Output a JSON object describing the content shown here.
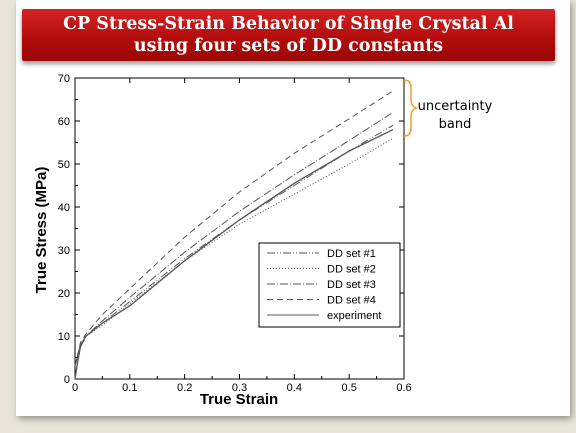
{
  "slide": {
    "title": "CP Stress-Strain Behavior of Single Crystal Al using four sets of DD constants"
  },
  "chart_data": {
    "type": "line",
    "xlabel": "True Strain",
    "ylabel": "True Stress (MPa)",
    "xlim": [
      0,
      0.6
    ],
    "ylim": [
      0,
      70
    ],
    "xticks": [
      "0",
      "0.1",
      "0.2",
      "0.3",
      "0.4",
      "0.5",
      "0.6"
    ],
    "yticks": [
      "0",
      "10",
      "20",
      "30",
      "40",
      "50",
      "60",
      "70"
    ],
    "grid": false,
    "legend_position": "center-right",
    "annotation": "uncertainty band",
    "colors": {
      "axis": "#000000",
      "series": "#555555",
      "brace": "#f0a030"
    },
    "series": [
      {
        "name": "DD set #1",
        "dash": "8,2,1,2,1,2",
        "x": [
          0,
          0.01,
          0.02,
          0.05,
          0.1,
          0.2,
          0.3,
          0.4,
          0.5,
          0.58
        ],
        "y": [
          3,
          8,
          10,
          13,
          18,
          28,
          37,
          45,
          53,
          59
        ]
      },
      {
        "name": "DD set #2",
        "dash": "1,2",
        "x": [
          0,
          0.01,
          0.02,
          0.05,
          0.1,
          0.2,
          0.3,
          0.4,
          0.5,
          0.58
        ],
        "y": [
          3,
          8,
          10,
          12.5,
          17.5,
          27.5,
          36,
          43,
          50,
          56
        ]
      },
      {
        "name": "DD set #3",
        "dash": "8,2,1,2",
        "x": [
          0,
          0.01,
          0.02,
          0.05,
          0.1,
          0.2,
          0.3,
          0.4,
          0.5,
          0.58
        ],
        "y": [
          3,
          8,
          10,
          13.5,
          19,
          29.5,
          39,
          47.5,
          55.5,
          62
        ]
      },
      {
        "name": "DD set #4",
        "dash": "6,4",
        "x": [
          0,
          0.01,
          0.02,
          0.05,
          0.1,
          0.2,
          0.3,
          0.4,
          0.5,
          0.58
        ],
        "y": [
          3,
          8.5,
          10.5,
          15,
          21,
          33,
          43.5,
          52.5,
          60.5,
          67
        ]
      },
      {
        "name": "experiment",
        "dash": "",
        "x": [
          0,
          0.005,
          0.01,
          0.02,
          0.05,
          0.1,
          0.2,
          0.3,
          0.4,
          0.5,
          0.58
        ],
        "y": [
          0,
          4,
          7.5,
          10,
          13,
          17,
          27.5,
          37,
          45.5,
          53,
          58
        ]
      }
    ]
  }
}
